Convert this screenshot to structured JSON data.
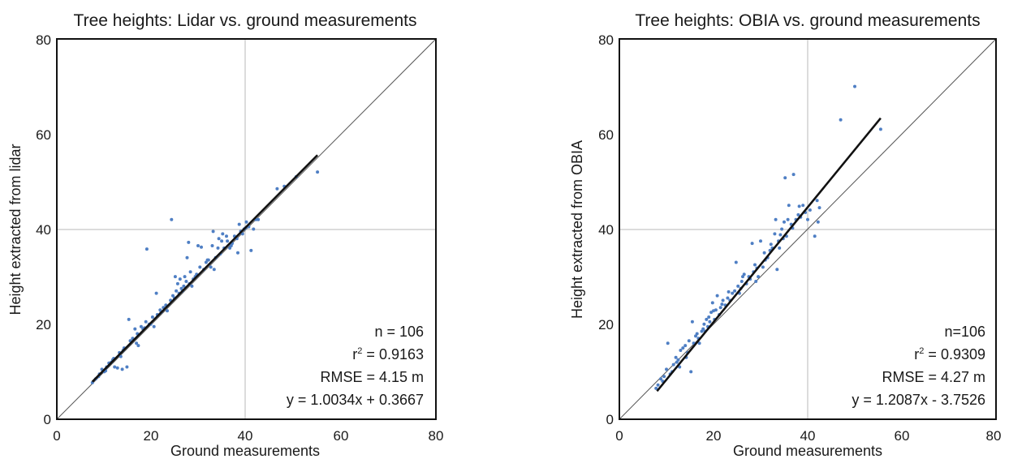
{
  "chart_data": [
    {
      "type": "scatter",
      "title": "Tree heights: Lidar vs. ground measurements",
      "xlabel": "Ground measurements",
      "ylabel": "Height extracted from lidar",
      "xlim": [
        0,
        80
      ],
      "ylim": [
        0,
        80
      ],
      "xticks": [
        "0",
        "20",
        "40",
        "60",
        "80"
      ],
      "yticks": [
        "0",
        "20",
        "40",
        "60",
        "80"
      ],
      "grid": "x=40 and y=40 reference lines",
      "reference_line": "1:1 diagonal",
      "fit": {
        "slope": 1.0034,
        "intercept": 0.3667,
        "x_range": [
          7.5,
          55
        ]
      },
      "stats": {
        "n": "n = 106",
        "r2": "0.9163",
        "rmse": "RMSE = 4.15 m",
        "equation": "y = 1.0034x + 0.3667"
      },
      "points": [
        [
          7.5,
          7.7
        ],
        [
          8.2,
          8.5
        ],
        [
          8.8,
          9.0
        ],
        [
          9.5,
          10.5
        ],
        [
          10.0,
          10.0
        ],
        [
          10.5,
          11.0
        ],
        [
          10.3,
          10.2
        ],
        [
          11.0,
          11.8
        ],
        [
          11.5,
          12.0
        ],
        [
          12.0,
          12.8
        ],
        [
          12.2,
          11.0
        ],
        [
          12.8,
          10.8
        ],
        [
          13.2,
          14.0
        ],
        [
          13.5,
          13.2
        ],
        [
          13.8,
          10.5
        ],
        [
          14.2,
          15.0
        ],
        [
          14.8,
          11.0
        ],
        [
          15.2,
          21.0
        ],
        [
          15.5,
          16.5
        ],
        [
          16.0,
          17.0
        ],
        [
          16.5,
          19.0
        ],
        [
          17.0,
          18.0
        ],
        [
          17.2,
          15.5
        ],
        [
          17.8,
          19.5
        ],
        [
          18.2,
          19.0
        ],
        [
          18.8,
          20.5
        ],
        [
          19.0,
          35.8
        ],
        [
          19.5,
          20.0
        ],
        [
          20.2,
          21.5
        ],
        [
          20.5,
          19.5
        ],
        [
          21.0,
          26.5
        ],
        [
          21.2,
          22.0
        ],
        [
          21.8,
          23.0
        ],
        [
          22.5,
          23.5
        ],
        [
          23.0,
          24.0
        ],
        [
          23.3,
          22.8
        ],
        [
          24.0,
          25.0
        ],
        [
          24.2,
          42.0
        ],
        [
          24.5,
          26.0
        ],
        [
          25.0,
          30.0
        ],
        [
          25.2,
          27.0
        ],
        [
          25.5,
          28.5
        ],
        [
          25.8,
          26.5
        ],
        [
          26.0,
          29.5
        ],
        [
          26.3,
          27.5
        ],
        [
          26.8,
          28.0
        ],
        [
          27.0,
          30.0
        ],
        [
          27.3,
          29.0
        ],
        [
          27.5,
          34.0
        ],
        [
          27.8,
          37.2
        ],
        [
          28.0,
          28.5
        ],
        [
          28.2,
          31.0
        ],
        [
          28.5,
          28.0
        ],
        [
          28.8,
          29.5
        ],
        [
          29.2,
          30.0
        ],
        [
          29.8,
          36.5
        ],
        [
          30.2,
          32.0
        ],
        [
          30.5,
          36.2
        ],
        [
          31.0,
          31.5
        ],
        [
          31.5,
          33.0
        ],
        [
          32.0,
          33.5
        ],
        [
          32.5,
          32.0
        ],
        [
          32.8,
          36.5
        ],
        [
          33.0,
          39.5
        ],
        [
          33.2,
          31.5
        ],
        [
          33.5,
          34.0
        ],
        [
          34.0,
          36.0
        ],
        [
          34.2,
          38.0
        ],
        [
          34.5,
          34.8
        ],
        [
          34.8,
          37.5
        ],
        [
          35.0,
          39.0
        ],
        [
          35.3,
          36.0
        ],
        [
          35.8,
          38.5
        ],
        [
          36.0,
          37.5
        ],
        [
          36.5,
          36.0
        ],
        [
          37.0,
          37.0
        ],
        [
          37.5,
          38.5
        ],
        [
          38.0,
          38.0
        ],
        [
          38.2,
          35.0
        ],
        [
          38.5,
          41.0
        ],
        [
          38.8,
          39.5
        ],
        [
          39.2,
          39.0
        ],
        [
          39.5,
          40.0
        ],
        [
          40.0,
          41.5
        ],
        [
          40.5,
          40.5
        ],
        [
          41.0,
          35.5
        ],
        [
          41.5,
          40.0
        ],
        [
          42.0,
          42.0
        ],
        [
          42.5,
          42.0
        ],
        [
          46.5,
          48.5
        ],
        [
          48.0,
          49.0
        ],
        [
          50.5,
          51.0
        ],
        [
          55.0,
          52.0
        ],
        [
          9.0,
          9.5
        ],
        [
          11.8,
          12.5
        ],
        [
          14.0,
          14.5
        ],
        [
          16.8,
          16.0
        ],
        [
          19.8,
          20.0
        ],
        [
          22.0,
          22.5
        ],
        [
          26.5,
          27.0
        ],
        [
          29.5,
          30.5
        ],
        [
          31.8,
          33.5
        ],
        [
          36.8,
          36.5
        ],
        [
          39.8,
          40.2
        ],
        [
          24.8,
          25.5
        ],
        [
          18.5,
          19.2
        ]
      ]
    },
    {
      "type": "scatter",
      "title": "Tree heights: OBIA vs. ground measurements",
      "xlabel": "Ground measurements",
      "ylabel": "Height extracted from OBIA",
      "xlim": [
        0,
        80
      ],
      "ylim": [
        0,
        80
      ],
      "xticks": [
        "0",
        "20",
        "40",
        "60",
        "80"
      ],
      "yticks": [
        "0",
        "20",
        "40",
        "60",
        "80"
      ],
      "grid": "x=40 and y=40 reference lines",
      "reference_line": "1:1 diagonal",
      "fit": {
        "slope": 1.2087,
        "intercept": -3.7526,
        "x_range": [
          8,
          55.5
        ]
      },
      "stats": {
        "n": "n=106",
        "r2": "0.9309",
        "rmse": "RMSE = 4.27 m",
        "equation": "y = 1.2087x - 3.7526"
      },
      "points": [
        [
          7.8,
          6.5
        ],
        [
          8.2,
          7.2
        ],
        [
          8.8,
          8.5
        ],
        [
          9.5,
          9.0
        ],
        [
          10.0,
          10.5
        ],
        [
          10.3,
          16.0
        ],
        [
          10.8,
          9.5
        ],
        [
          11.2,
          10.0
        ],
        [
          11.5,
          11.5
        ],
        [
          12.0,
          13.0
        ],
        [
          12.5,
          12.5
        ],
        [
          12.8,
          11.0
        ],
        [
          13.0,
          14.5
        ],
        [
          13.5,
          15.0
        ],
        [
          14.0,
          15.5
        ],
        [
          14.2,
          13.0
        ],
        [
          14.8,
          16.5
        ],
        [
          15.2,
          10.0
        ],
        [
          15.5,
          20.5
        ],
        [
          15.8,
          16.0
        ],
        [
          16.2,
          17.5
        ],
        [
          16.5,
          18.0
        ],
        [
          17.0,
          16.0
        ],
        [
          17.5,
          18.5
        ],
        [
          17.8,
          19.0
        ],
        [
          18.0,
          20.0
        ],
        [
          18.5,
          21.0
        ],
        [
          18.8,
          19.5
        ],
        [
          19.2,
          20.5
        ],
        [
          19.5,
          22.5
        ],
        [
          19.8,
          24.5
        ],
        [
          20.2,
          21.0
        ],
        [
          20.5,
          23.0
        ],
        [
          20.8,
          26.0
        ],
        [
          21.2,
          22.0
        ],
        [
          21.5,
          23.5
        ],
        [
          22.0,
          25.0
        ],
        [
          22.5,
          24.0
        ],
        [
          23.0,
          25.5
        ],
        [
          23.5,
          25.0
        ],
        [
          24.0,
          26.5
        ],
        [
          24.5,
          27.0
        ],
        [
          24.8,
          33.0
        ],
        [
          25.2,
          28.0
        ],
        [
          25.5,
          26.5
        ],
        [
          26.0,
          29.0
        ],
        [
          26.5,
          30.5
        ],
        [
          27.0,
          28.5
        ],
        [
          27.5,
          30.0
        ],
        [
          27.8,
          29.5
        ],
        [
          28.2,
          37.0
        ],
        [
          28.5,
          31.0
        ],
        [
          29.0,
          29.0
        ],
        [
          29.5,
          30.0
        ],
        [
          30.0,
          37.5
        ],
        [
          30.5,
          32.0
        ],
        [
          31.0,
          33.5
        ],
        [
          31.5,
          34.0
        ],
        [
          32.0,
          35.5
        ],
        [
          32.5,
          36.0
        ],
        [
          33.0,
          39.0
        ],
        [
          33.2,
          42.0
        ],
        [
          33.5,
          31.5
        ],
        [
          34.0,
          36.0
        ],
        [
          34.5,
          40.0
        ],
        [
          34.8,
          38.0
        ],
        [
          35.0,
          41.5
        ],
        [
          35.2,
          50.8
        ],
        [
          35.5,
          38.5
        ],
        [
          35.8,
          42.0
        ],
        [
          36.0,
          45.0
        ],
        [
          36.5,
          41.0
        ],
        [
          37.0,
          51.5
        ],
        [
          37.5,
          42.0
        ],
        [
          38.0,
          43.0
        ],
        [
          38.5,
          42.5
        ],
        [
          39.0,
          45.0
        ],
        [
          39.5,
          43.5
        ],
        [
          40.0,
          42.0
        ],
        [
          40.5,
          44.0
        ],
        [
          41.5,
          38.5
        ],
        [
          42.0,
          46.0
        ],
        [
          42.5,
          44.5
        ],
        [
          42.2,
          41.5
        ],
        [
          47.0,
          63.0
        ],
        [
          50.0,
          70.0
        ],
        [
          55.5,
          61.0
        ],
        [
          9.2,
          8.0
        ],
        [
          12.2,
          12.0
        ],
        [
          14.5,
          14.0
        ],
        [
          16.8,
          17.0
        ],
        [
          19.0,
          21.5
        ],
        [
          21.8,
          24.2
        ],
        [
          23.2,
          26.8
        ],
        [
          25.8,
          27.5
        ],
        [
          28.8,
          32.5
        ],
        [
          30.8,
          35.0
        ],
        [
          32.2,
          36.8
        ],
        [
          34.2,
          38.8
        ],
        [
          36.8,
          40.2
        ],
        [
          38.2,
          44.8
        ],
        [
          20.0,
          22.8
        ],
        [
          18.2,
          18.5
        ],
        [
          26.2,
          30.0
        ],
        [
          29.2,
          31.8
        ],
        [
          33.8,
          37.5
        ]
      ]
    }
  ]
}
